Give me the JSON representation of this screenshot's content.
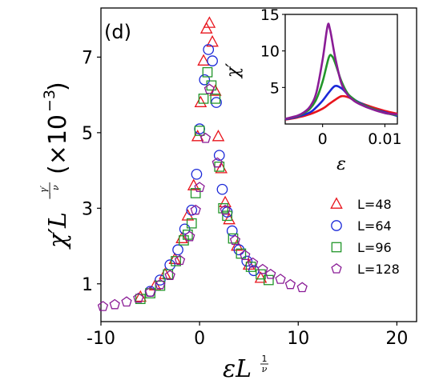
{
  "panel_label": "(d)",
  "colors": {
    "L48": "#e8141c",
    "L64": "#1a28d8",
    "L96": "#22962a",
    "L128": "#8a1c96"
  },
  "chart_data": [
    {
      "type": "scatter",
      "title": "",
      "xlabel": "εL^(1/ν)",
      "ylabel": "χ'L^(-γ'/ν) (×10^-3)",
      "xlim": [
        -10,
        22
      ],
      "ylim": [
        0,
        8.3
      ],
      "xticks": [
        -10,
        0,
        10,
        20
      ],
      "yticks": [
        1,
        3,
        5,
        7
      ],
      "xtick_labels": [
        "-10",
        "0",
        "10",
        "20"
      ],
      "ytick_labels": [
        "1",
        "3",
        "5",
        "7"
      ],
      "legend_position": "right",
      "series": [
        {
          "name": "L=48",
          "marker": "triangle",
          "color": "#e8141c",
          "points": [
            [
              -6.0,
              0.65
            ],
            [
              -4.5,
              0.95
            ],
            [
              -3.5,
              1.25
            ],
            [
              -2.5,
              1.65
            ],
            [
              -1.8,
              2.2
            ],
            [
              -1.2,
              2.8
            ],
            [
              -0.6,
              3.6
            ],
            [
              -0.2,
              4.9
            ],
            [
              0.1,
              5.8
            ],
            [
              0.4,
              6.9
            ],
            [
              0.7,
              7.75
            ],
            [
              1.0,
              7.9
            ],
            [
              1.3,
              7.4
            ],
            [
              1.6,
              6.1
            ],
            [
              1.9,
              4.9
            ],
            [
              2.2,
              4.05
            ],
            [
              2.6,
              3.15
            ],
            [
              3.0,
              2.7
            ],
            [
              3.8,
              2.0
            ],
            [
              5.0,
              1.5
            ],
            [
              6.2,
              1.15
            ]
          ]
        },
        {
          "name": "L=64",
          "marker": "circle",
          "color": "#1a28d8",
          "points": [
            [
              -5.0,
              0.8
            ],
            [
              -4.0,
              1.1
            ],
            [
              -3.0,
              1.5
            ],
            [
              -2.2,
              1.9
            ],
            [
              -1.5,
              2.45
            ],
            [
              -0.8,
              2.95
            ],
            [
              -0.3,
              3.9
            ],
            [
              0.0,
              5.1
            ],
            [
              0.5,
              6.4
            ],
            [
              0.9,
              7.2
            ],
            [
              1.3,
              6.9
            ],
            [
              1.7,
              5.8
            ],
            [
              2.0,
              4.4
            ],
            [
              2.3,
              3.5
            ],
            [
              2.8,
              2.9
            ],
            [
              3.3,
              2.4
            ],
            [
              4.0,
              1.9
            ],
            [
              4.8,
              1.6
            ],
            [
              5.5,
              1.35
            ]
          ]
        },
        {
          "name": "L=96",
          "marker": "square",
          "color": "#22962a",
          "points": [
            [
              -6.0,
              0.6
            ],
            [
              -5.0,
              0.75
            ],
            [
              -4.0,
              0.95
            ],
            [
              -3.2,
              1.25
            ],
            [
              -2.4,
              1.6
            ],
            [
              -1.6,
              2.15
            ],
            [
              -1.2,
              2.3
            ],
            [
              -0.8,
              2.6
            ],
            [
              -0.4,
              3.4
            ],
            [
              0.0,
              5.05
            ],
            [
              0.4,
              5.9
            ],
            [
              0.8,
              6.6
            ],
            [
              1.2,
              6.25
            ],
            [
              1.6,
              5.9
            ],
            [
              2.0,
              4.1
            ],
            [
              2.4,
              3.0
            ],
            [
              2.8,
              2.8
            ],
            [
              3.4,
              2.2
            ],
            [
              4.2,
              1.8
            ],
            [
              5.2,
              1.45
            ],
            [
              6.2,
              1.25
            ],
            [
              7.0,
              1.1
            ]
          ]
        },
        {
          "name": "L=128",
          "marker": "pentagon",
          "color": "#8a1c96",
          "points": [
            [
              -9.8,
              0.4
            ],
            [
              -8.6,
              0.45
            ],
            [
              -7.4,
              0.52
            ],
            [
              -6.2,
              0.62
            ],
            [
              -5.0,
              0.78
            ],
            [
              -4.0,
              0.98
            ],
            [
              -3.0,
              1.22
            ],
            [
              -2.0,
              1.62
            ],
            [
              -1.0,
              2.25
            ],
            [
              -0.4,
              2.95
            ],
            [
              0.0,
              3.55
            ],
            [
              0.6,
              4.85
            ],
            [
              1.0,
              6.15
            ],
            [
              1.8,
              4.2
            ],
            [
              2.6,
              2.95
            ],
            [
              3.6,
              2.15
            ],
            [
              4.6,
              1.75
            ],
            [
              5.4,
              1.55
            ],
            [
              6.4,
              1.38
            ],
            [
              7.2,
              1.25
            ],
            [
              8.2,
              1.12
            ],
            [
              9.2,
              0.98
            ],
            [
              10.4,
              0.9
            ]
          ]
        }
      ]
    },
    {
      "type": "line",
      "title": "",
      "xlabel": "ε",
      "ylabel": "χ'",
      "xlim": [
        -0.006,
        0.012
      ],
      "ylim": [
        0,
        15
      ],
      "xticks": [
        0,
        0.01
      ],
      "yticks": [
        5,
        10,
        15
      ],
      "xtick_labels": [
        "0",
        "0.01"
      ],
      "ytick_labels": [
        "5",
        "10",
        "15"
      ],
      "series": [
        {
          "name": "L=48",
          "color": "#e8141c",
          "points": [
            [
              -0.006,
              0.6
            ],
            [
              -0.004,
              0.9
            ],
            [
              -0.002,
              1.35
            ],
            [
              0.0,
              2.1
            ],
            [
              0.001,
              2.7
            ],
            [
              0.002,
              3.3
            ],
            [
              0.003,
              3.8
            ],
            [
              0.004,
              3.7
            ],
            [
              0.005,
              3.3
            ],
            [
              0.006,
              2.9
            ],
            [
              0.008,
              2.3
            ],
            [
              0.01,
              1.8
            ],
            [
              0.012,
              1.4
            ]
          ]
        },
        {
          "name": "L=64",
          "color": "#1a28d8",
          "points": [
            [
              -0.006,
              0.65
            ],
            [
              -0.004,
              1.0
            ],
            [
              -0.002,
              1.6
            ],
            [
              -0.001,
              2.3
            ],
            [
              0.0,
              3.2
            ],
            [
              0.001,
              4.3
            ],
            [
              0.002,
              5.2
            ],
            [
              0.003,
              4.9
            ],
            [
              0.004,
              4.1
            ],
            [
              0.005,
              3.4
            ],
            [
              0.006,
              2.9
            ],
            [
              0.008,
              2.1
            ],
            [
              0.01,
              1.6
            ],
            [
              0.012,
              1.1
            ]
          ]
        },
        {
          "name": "L=96",
          "color": "#22962a",
          "points": [
            [
              -0.006,
              0.7
            ],
            [
              -0.004,
              1.1
            ],
            [
              -0.003,
              1.5
            ],
            [
              -0.002,
              2.1
            ],
            [
              -0.001,
              3.4
            ],
            [
              0.0,
              5.8
            ],
            [
              0.001,
              9.1
            ],
            [
              0.0015,
              9.3
            ],
            [
              0.002,
              8.4
            ],
            [
              0.003,
              5.9
            ],
            [
              0.004,
              4.2
            ],
            [
              0.005,
              3.4
            ],
            [
              0.006,
              2.8
            ],
            [
              0.008,
              2.1
            ],
            [
              0.01,
              1.5
            ],
            [
              0.012,
              1.2
            ]
          ]
        },
        {
          "name": "L=128",
          "color": "#8a1c96",
          "points": [
            [
              -0.006,
              0.7
            ],
            [
              -0.004,
              1.15
            ],
            [
              -0.003,
              1.6
            ],
            [
              -0.002,
              2.4
            ],
            [
              -0.001,
              4.3
            ],
            [
              0.0,
              8.8
            ],
            [
              0.0008,
              13.4
            ],
            [
              0.0012,
              12.9
            ],
            [
              0.002,
              9.2
            ],
            [
              0.003,
              5.6
            ],
            [
              0.004,
              4.0
            ],
            [
              0.005,
              3.2
            ],
            [
              0.006,
              2.7
            ],
            [
              0.008,
              2.0
            ],
            [
              0.01,
              1.5
            ],
            [
              0.012,
              1.3
            ]
          ]
        }
      ]
    }
  ]
}
